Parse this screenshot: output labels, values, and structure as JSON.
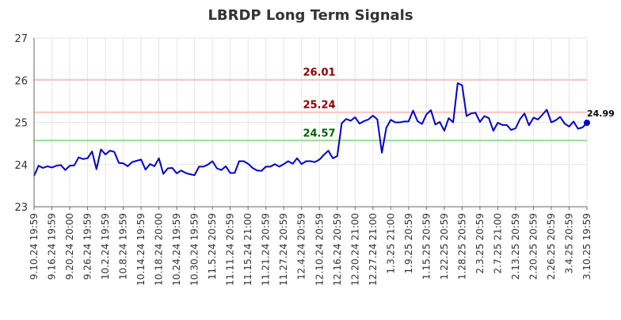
{
  "chart_data": {
    "type": "line",
    "title": "LBRDP Long Term Signals",
    "xlabel": "",
    "ylabel": "",
    "ylim": [
      23,
      27
    ],
    "yticks": [
      23,
      24,
      25,
      26,
      27
    ],
    "grid": true,
    "xtick_labels": [
      "9.10.24 19:59",
      "9.16.24 19:59",
      "9.20.24 20:00",
      "9.26.24 19:59",
      "10.2.24 19:59",
      "10.8.24 19:59",
      "10.14.24 19:59",
      "10.18.24 20:00",
      "10.24.24 19:59",
      "10.30.24 19:59",
      "11.5.24 20:59",
      "11.11.24 20:59",
      "11.15.24 21:00",
      "11.21.24 20:59",
      "11.27.24 20:59",
      "12.4.24 20:59",
      "12.10.24 20:59",
      "12.16.24 20:59",
      "12.20.24 21:00",
      "12.27.24 21:00",
      "1.3.25 21:00",
      "1.9.25 20:59",
      "1.15.25 20:59",
      "1.22.25 20:59",
      "1.28.25 20:59",
      "2.3.25 20:59",
      "2.7.25 21:00",
      "2.13.25 20:59",
      "2.20.25 20:59",
      "2.26.25 20:59",
      "3.4.25 20:59",
      "3.10.25 19:59"
    ],
    "series": [
      {
        "color": "#0000cc",
        "values": [
          23.73,
          23.97,
          23.92,
          23.96,
          23.93,
          23.97,
          23.99,
          23.87,
          23.97,
          23.98,
          24.17,
          24.13,
          24.15,
          24.31,
          23.89,
          24.36,
          24.24,
          24.33,
          24.3,
          24.04,
          24.03,
          23.96,
          24.06,
          24.09,
          24.12,
          23.88,
          24.01,
          23.96,
          24.15,
          23.78,
          23.91,
          23.92,
          23.79,
          23.86,
          23.8,
          23.77,
          23.75,
          23.95,
          23.95,
          24.0,
          24.08,
          23.91,
          23.87,
          23.96,
          23.8,
          23.8,
          24.08,
          24.08,
          24.02,
          23.92,
          23.86,
          23.85,
          23.95,
          23.95,
          24.01,
          23.95,
          24.01,
          24.08,
          24.02,
          24.15,
          24.01,
          24.08,
          24.08,
          24.06,
          24.12,
          24.23,
          24.33,
          24.15,
          24.2,
          24.98,
          25.08,
          25.04,
          25.12,
          24.97,
          25.03,
          25.07,
          25.16,
          25.07,
          24.28,
          24.87,
          25.06,
          25.0,
          25.0,
          25.02,
          25.02,
          25.28,
          25.03,
          24.96,
          25.19,
          25.29,
          24.95,
          25.01,
          24.8,
          25.1,
          25.0,
          25.93,
          25.88,
          25.15,
          25.21,
          25.23,
          25.01,
          25.15,
          25.1,
          24.8,
          24.99,
          24.94,
          24.94,
          24.82,
          24.86,
          25.08,
          25.21,
          24.93,
          25.11,
          25.07,
          25.18,
          25.3,
          25.0,
          25.05,
          25.13,
          24.97,
          24.9,
          25.02,
          24.85,
          24.88,
          24.99
        ]
      }
    ],
    "reference_lines": [
      {
        "value": 26.01,
        "label": "26.01",
        "line_color": "#ffc0c0",
        "label_color": "#8b0000"
      },
      {
        "value": 25.24,
        "label": "25.24",
        "line_color": "#ffc0c0",
        "label_color": "#8b0000"
      },
      {
        "value": 24.57,
        "label": "24.57",
        "line_color": "#8ee08e",
        "label_color": "#006400"
      }
    ],
    "last_value_label": "24.99"
  }
}
